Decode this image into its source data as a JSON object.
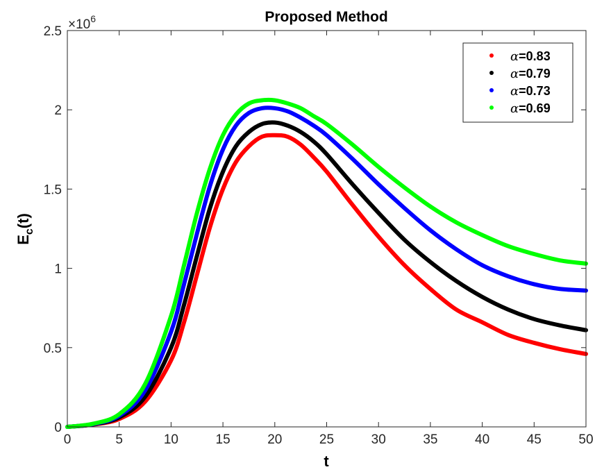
{
  "chart_data": {
    "type": "line",
    "title": "Proposed Method",
    "xlabel": "t",
    "ylabel_main": "E",
    "ylabel_sub": "c",
    "ylabel_tail": "(t)",
    "exponent_label": "×10",
    "exponent_power": "6",
    "xlim": [
      0,
      50
    ],
    "ylim": [
      0,
      2.5
    ],
    "xticks": [
      0,
      5,
      10,
      15,
      20,
      25,
      30,
      35,
      40,
      45,
      50
    ],
    "xtick_labels": [
      "0",
      "5",
      "10",
      "15",
      "20",
      "25",
      "30",
      "35",
      "40",
      "45",
      "50"
    ],
    "yticks": [
      0,
      0.5,
      1,
      1.5,
      2,
      2.5
    ],
    "ytick_labels": [
      "0",
      "0.5",
      "1",
      "1.5",
      "2",
      "2.5"
    ],
    "grid": false,
    "legend_position": "top-right",
    "x": [
      0,
      2.5,
      5,
      7.5,
      10,
      11.25,
      12.5,
      13.75,
      15,
      16.25,
      17.5,
      18.75,
      20,
      21.25,
      22.5,
      23.75,
      25,
      27.5,
      30,
      32.5,
      35,
      37.5,
      40,
      42.5,
      45,
      47.5,
      50
    ],
    "series": [
      {
        "name": "0.83",
        "color": "#ff0000",
        "values": [
          0,
          0.015,
          0.05,
          0.16,
          0.42,
          0.66,
          0.96,
          1.26,
          1.5,
          1.67,
          1.77,
          1.83,
          1.84,
          1.83,
          1.78,
          1.7,
          1.61,
          1.4,
          1.2,
          1.02,
          0.87,
          0.74,
          0.66,
          0.58,
          0.53,
          0.49,
          0.46
        ]
      },
      {
        "name": "0.79",
        "color": "#000000",
        "values": [
          0,
          0.016,
          0.06,
          0.19,
          0.5,
          0.77,
          1.08,
          1.38,
          1.61,
          1.77,
          1.86,
          1.91,
          1.92,
          1.9,
          1.86,
          1.8,
          1.72,
          1.53,
          1.35,
          1.18,
          1.04,
          0.92,
          0.82,
          0.74,
          0.68,
          0.64,
          0.61
        ]
      },
      {
        "name": "0.73",
        "color": "#0000ff",
        "values": [
          0,
          0.018,
          0.07,
          0.23,
          0.6,
          0.9,
          1.22,
          1.52,
          1.75,
          1.9,
          1.98,
          2.01,
          2.01,
          1.99,
          1.95,
          1.9,
          1.84,
          1.69,
          1.53,
          1.38,
          1.24,
          1.12,
          1.02,
          0.95,
          0.9,
          0.87,
          0.86
        ]
      },
      {
        "name": "0.69",
        "color": "#00ff00",
        "values": [
          0,
          0.02,
          0.08,
          0.27,
          0.7,
          1.02,
          1.35,
          1.63,
          1.84,
          1.97,
          2.04,
          2.06,
          2.06,
          2.04,
          2.01,
          1.96,
          1.91,
          1.78,
          1.64,
          1.51,
          1.39,
          1.29,
          1.21,
          1.14,
          1.09,
          1.05,
          1.03
        ]
      }
    ]
  }
}
